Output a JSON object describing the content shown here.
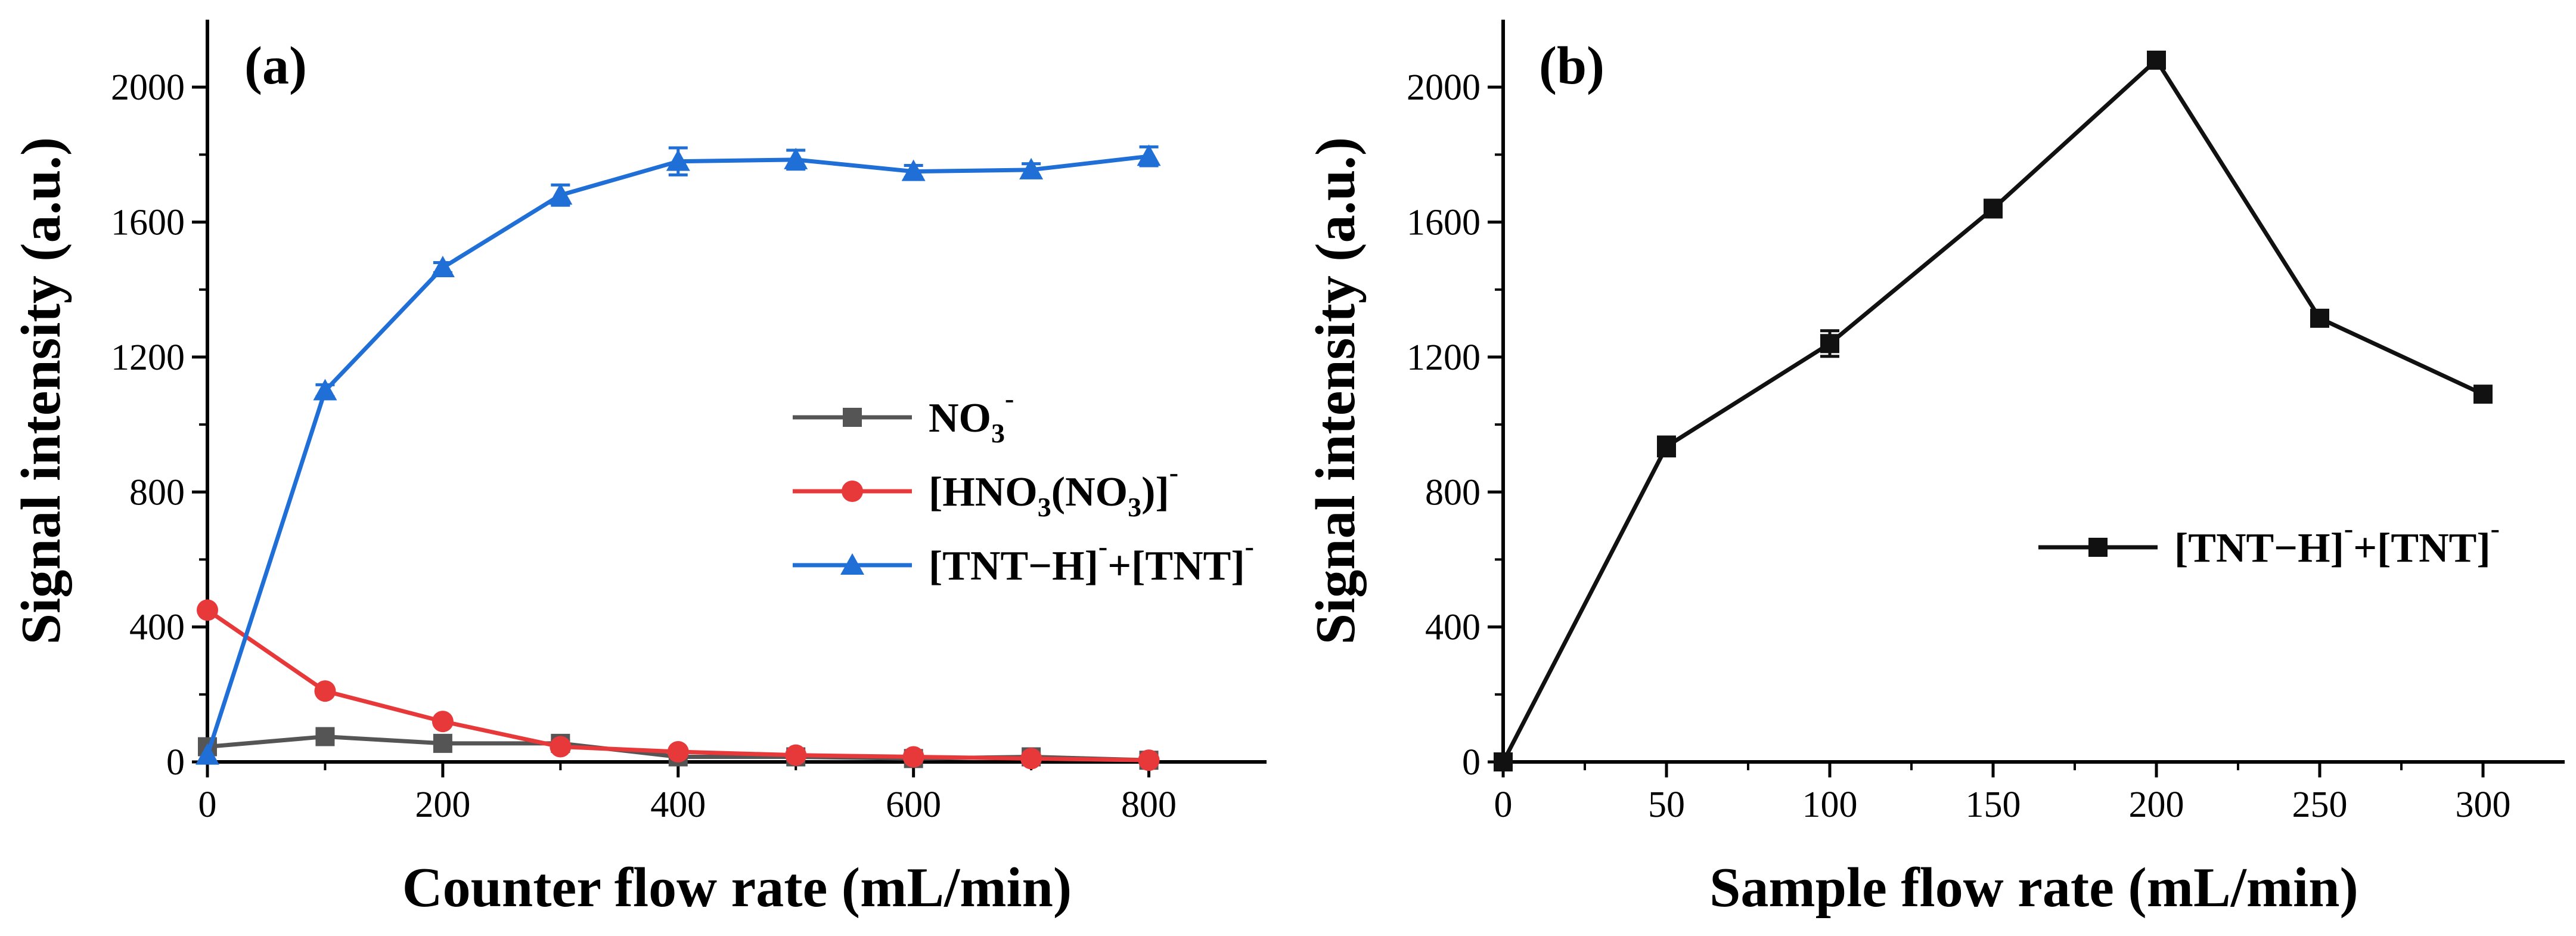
{
  "chart_data": [
    {
      "type": "line",
      "panel_label": "(a)",
      "xlabel": "Counter flow rate (mL/min)",
      "ylabel": "Signal intensity (a.u.)",
      "xlim": [
        0,
        900
      ],
      "ylim": [
        0,
        2200
      ],
      "xticks": [
        "0",
        "200",
        "400",
        "600",
        "800"
      ],
      "yticks": [
        "0",
        "400",
        "800",
        "1200",
        "1600",
        "2000"
      ],
      "legend_position": "center-right",
      "x": [
        0,
        100,
        200,
        300,
        400,
        500,
        600,
        700,
        800
      ],
      "series": [
        {
          "name": "NO3-",
          "legend": {
            "base": "NO",
            "sub": "3",
            "sup": "-",
            "rest": ""
          },
          "color": "#555555",
          "marker": "square",
          "values": [
            45,
            75,
            55,
            55,
            15,
            15,
            10,
            15,
            5
          ],
          "errors": [
            0,
            8,
            0,
            8,
            0,
            0,
            0,
            8,
            0
          ]
        },
        {
          "name": "[HNO3(NO3)]-",
          "legend": {
            "parts": [
              {
                "t": "[HNO"
              },
              {
                "t": "3",
                "sub": true
              },
              {
                "t": "(NO"
              },
              {
                "t": "3",
                "sub": true
              },
              {
                "t": ")]"
              },
              {
                "t": "-",
                "sup": true
              }
            ]
          },
          "color": "#e8393a",
          "marker": "circle",
          "values": [
            450,
            210,
            120,
            45,
            30,
            20,
            15,
            10,
            5
          ],
          "errors": [
            0,
            0,
            0,
            0,
            0,
            0,
            0,
            0,
            0
          ]
        },
        {
          "name": "[TNT-H]-+[TNT]-",
          "legend": {
            "parts": [
              {
                "t": "[TNT−H]"
              },
              {
                "t": "-",
                "sup": true
              },
              {
                "t": "+[TNT]"
              },
              {
                "t": "-",
                "sup": true
              }
            ]
          },
          "color": "#1f6fd6",
          "marker": "triangle",
          "values": [
            20,
            1100,
            1465,
            1680,
            1780,
            1785,
            1750,
            1755,
            1795
          ],
          "errors": [
            0,
            18,
            15,
            30,
            40,
            28,
            18,
            18,
            28
          ]
        }
      ]
    },
    {
      "type": "line",
      "panel_label": "(b)",
      "xlabel": "Sample flow rate (mL/min)",
      "ylabel": "Signal intensity (a.u.)",
      "xlim": [
        0,
        325
      ],
      "ylim": [
        0,
        2200
      ],
      "xticks": [
        "0",
        "50",
        "100",
        "150",
        "200",
        "250",
        "300"
      ],
      "yticks": [
        "0",
        "400",
        "800",
        "1200",
        "1600",
        "2000"
      ],
      "legend_position": "center-right",
      "x": [
        0,
        50,
        100,
        150,
        200,
        250,
        300
      ],
      "series": [
        {
          "name": "[TNT-H]-+[TNT]-",
          "legend": {
            "parts": [
              {
                "t": "[TNT−H]"
              },
              {
                "t": "-",
                "sup": true
              },
              {
                "t": "+[TNT]"
              },
              {
                "t": "-",
                "sup": true
              }
            ]
          },
          "color": "#111111",
          "marker": "square",
          "values": [
            0,
            935,
            1240,
            1640,
            2080,
            1315,
            1090
          ],
          "errors": [
            0,
            28,
            38,
            25,
            15,
            12,
            10
          ]
        }
      ]
    }
  ]
}
